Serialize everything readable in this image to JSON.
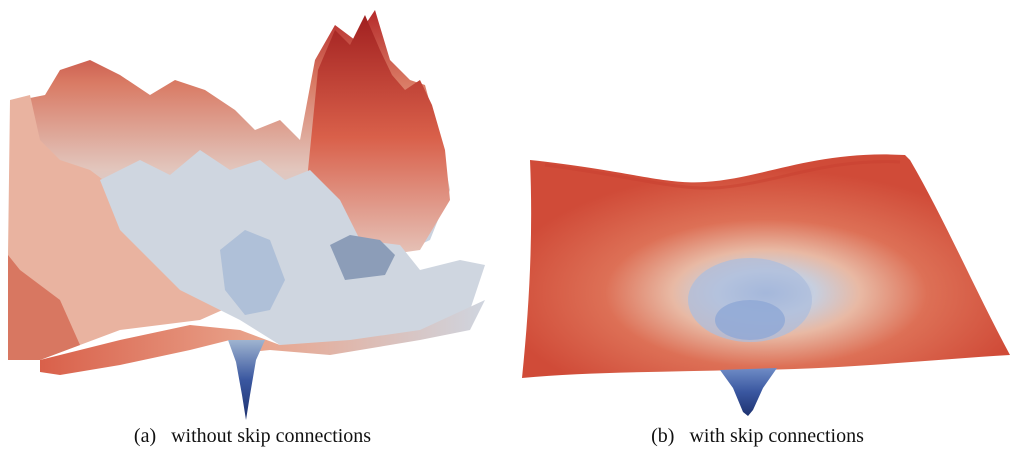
{
  "figure": {
    "panel_a": {
      "tag": "(a)",
      "caption": "without skip connections"
    },
    "panel_b": {
      "tag": "(b)",
      "caption": "with skip connections"
    }
  },
  "colors": {
    "high": "#b52a2a",
    "mid_red": "#d9604a",
    "warm": "#e8a088",
    "neutral": "#d8d8dc",
    "cool": "#9fb4d0",
    "low": "#3a57a0",
    "deep": "#243a80"
  }
}
